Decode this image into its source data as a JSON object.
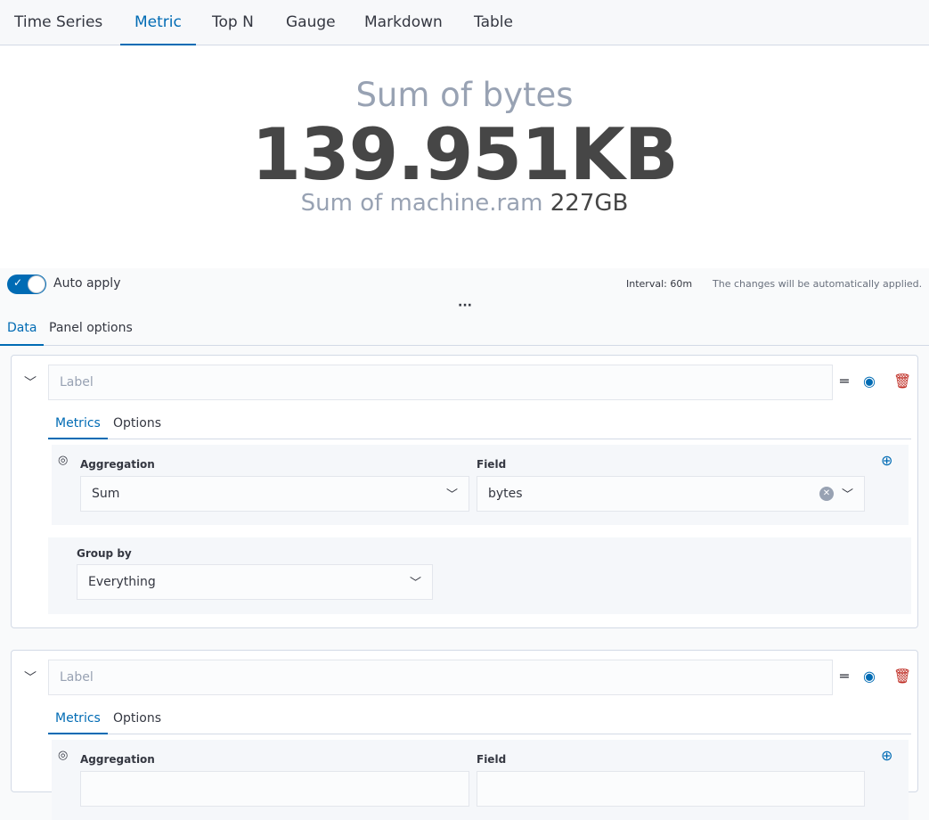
{
  "tabs": [
    "Time Series",
    "Metric",
    "Top N",
    "Gauge",
    "Markdown",
    "Table"
  ],
  "active_tab": "Metric",
  "metric": {
    "title": "Sum of bytes",
    "value": "139.951KB",
    "secondary_label": "Sum of machine.ram",
    "secondary_value": "227GB"
  },
  "controls": {
    "auto_apply": "Auto apply",
    "auto_apply_on": true,
    "interval": "Interval: 60m",
    "status": "The changes will be automatically applied."
  },
  "editor_tabs": [
    "Data",
    "Panel options"
  ],
  "series": [
    {
      "label_placeholder": "Label",
      "tabs": [
        "Metrics",
        "Options"
      ],
      "aggregation_label": "Aggregation",
      "aggregation": "Sum",
      "field_label": "Field",
      "field": "bytes",
      "group_by_label": "Group by",
      "group_by": "Everything"
    },
    {
      "label_placeholder": "Label",
      "tabs": [
        "Metrics",
        "Options"
      ],
      "aggregation_label": "Aggregation",
      "field_label": "Field"
    }
  ],
  "colors": {
    "accent": "#006bb4",
    "danger": "#bd271e"
  }
}
